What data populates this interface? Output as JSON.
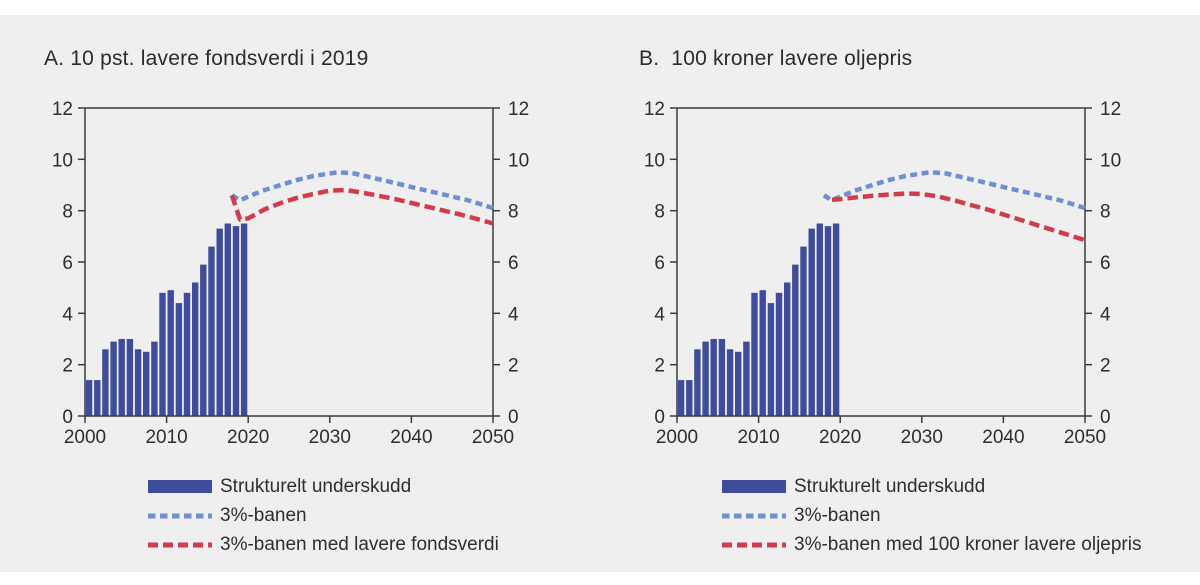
{
  "page": {
    "background": "#ffffff",
    "panel_background": "#f0efef"
  },
  "colors": {
    "bar": "#3f4b9b",
    "blue_line": "#6f8fd4",
    "red_line": "#d03c4b",
    "axis": "#3c3c3c",
    "tick_text": "#2e2e2e",
    "title_text": "#2b2b2b"
  },
  "chart_data": [
    {
      "type": "bar",
      "title": "A. 10 pst. lavere fondsverdi i 2019",
      "xlim": [
        2000,
        2050
      ],
      "ylim": [
        0,
        12
      ],
      "x_ticks": [
        2000,
        2010,
        2020,
        2030,
        2040,
        2050
      ],
      "y_ticks": [
        0,
        2,
        4,
        6,
        8,
        10,
        12
      ],
      "dual_y_axis": true,
      "grid": false,
      "legend_position": "bottom",
      "bar_series": {
        "name": "Strukturelt underskudd",
        "years": [
          2000,
          2001,
          2002,
          2003,
          2004,
          2005,
          2006,
          2007,
          2008,
          2009,
          2010,
          2011,
          2012,
          2013,
          2014,
          2015,
          2016,
          2017,
          2018,
          2019
        ],
        "values": [
          1.4,
          1.4,
          2.6,
          2.9,
          3.0,
          3.0,
          2.6,
          2.5,
          2.9,
          4.8,
          4.9,
          4.4,
          4.8,
          5.2,
          5.9,
          6.6,
          7.3,
          7.5,
          7.4,
          7.5
        ]
      },
      "line_series": [
        {
          "name": "3%-banen",
          "style": "dashed",
          "color": "#6f8fd4",
          "points": [
            [
              2018,
              8.6
            ],
            [
              2019,
              8.4
            ],
            [
              2020,
              8.55
            ],
            [
              2022,
              8.8
            ],
            [
              2024,
              9.0
            ],
            [
              2026,
              9.2
            ],
            [
              2028,
              9.35
            ],
            [
              2030,
              9.45
            ],
            [
              2031,
              9.5
            ],
            [
              2033,
              9.45
            ],
            [
              2035,
              9.3
            ],
            [
              2037,
              9.15
            ],
            [
              2039,
              9.0
            ],
            [
              2041,
              8.85
            ],
            [
              2043,
              8.7
            ],
            [
              2045,
              8.55
            ],
            [
              2047,
              8.4
            ],
            [
              2049,
              8.2
            ],
            [
              2050,
              8.1
            ]
          ]
        },
        {
          "name": "3%-banen med lavere fondsverdi",
          "style": "dashed",
          "color": "#d03c4b",
          "points": [
            [
              2018,
              8.6
            ],
            [
              2019,
              7.65
            ],
            [
              2020,
              7.7
            ],
            [
              2022,
              8.05
            ],
            [
              2024,
              8.3
            ],
            [
              2026,
              8.5
            ],
            [
              2028,
              8.65
            ],
            [
              2030,
              8.78
            ],
            [
              2032,
              8.8
            ],
            [
              2034,
              8.7
            ],
            [
              2036,
              8.58
            ],
            [
              2038,
              8.45
            ],
            [
              2040,
              8.3
            ],
            [
              2042,
              8.15
            ],
            [
              2044,
              8.0
            ],
            [
              2046,
              7.85
            ],
            [
              2048,
              7.68
            ],
            [
              2050,
              7.5
            ]
          ]
        }
      ]
    },
    {
      "type": "bar",
      "title": "B.  100 kroner lavere oljepris",
      "xlim": [
        2000,
        2050
      ],
      "ylim": [
        0,
        12
      ],
      "x_ticks": [
        2000,
        2010,
        2020,
        2030,
        2040,
        2050
      ],
      "y_ticks": [
        0,
        2,
        4,
        6,
        8,
        10,
        12
      ],
      "dual_y_axis": true,
      "grid": false,
      "legend_position": "bottom",
      "bar_series": {
        "name": "Strukturelt underskudd",
        "years": [
          2000,
          2001,
          2002,
          2003,
          2004,
          2005,
          2006,
          2007,
          2008,
          2009,
          2010,
          2011,
          2012,
          2013,
          2014,
          2015,
          2016,
          2017,
          2018,
          2019
        ],
        "values": [
          1.4,
          1.4,
          2.6,
          2.9,
          3.0,
          3.0,
          2.6,
          2.5,
          2.9,
          4.8,
          4.9,
          4.4,
          4.8,
          5.2,
          5.9,
          6.6,
          7.3,
          7.5,
          7.4,
          7.5
        ]
      },
      "line_series": [
        {
          "name": "3%-banen",
          "style": "dashed",
          "color": "#6f8fd4",
          "points": [
            [
              2018,
              8.6
            ],
            [
              2019,
              8.4
            ],
            [
              2020,
              8.55
            ],
            [
              2022,
              8.8
            ],
            [
              2024,
              9.0
            ],
            [
              2026,
              9.2
            ],
            [
              2028,
              9.35
            ],
            [
              2030,
              9.45
            ],
            [
              2031,
              9.5
            ],
            [
              2033,
              9.45
            ],
            [
              2035,
              9.3
            ],
            [
              2037,
              9.15
            ],
            [
              2039,
              9.0
            ],
            [
              2041,
              8.85
            ],
            [
              2043,
              8.7
            ],
            [
              2045,
              8.55
            ],
            [
              2047,
              8.4
            ],
            [
              2049,
              8.2
            ],
            [
              2050,
              8.1
            ]
          ]
        },
        {
          "name": "3%-banen med 100 kroner lavere oljepris",
          "style": "dashed",
          "color": "#d03c4b",
          "points": [
            [
              2019,
              8.42
            ],
            [
              2020,
              8.45
            ],
            [
              2022,
              8.52
            ],
            [
              2024,
              8.58
            ],
            [
              2026,
              8.63
            ],
            [
              2028,
              8.67
            ],
            [
              2030,
              8.65
            ],
            [
              2032,
              8.55
            ],
            [
              2034,
              8.4
            ],
            [
              2036,
              8.22
            ],
            [
              2038,
              8.05
            ],
            [
              2040,
              7.85
            ],
            [
              2042,
              7.65
            ],
            [
              2044,
              7.45
            ],
            [
              2046,
              7.25
            ],
            [
              2048,
              7.05
            ],
            [
              2050,
              6.85
            ]
          ]
        }
      ]
    }
  ]
}
